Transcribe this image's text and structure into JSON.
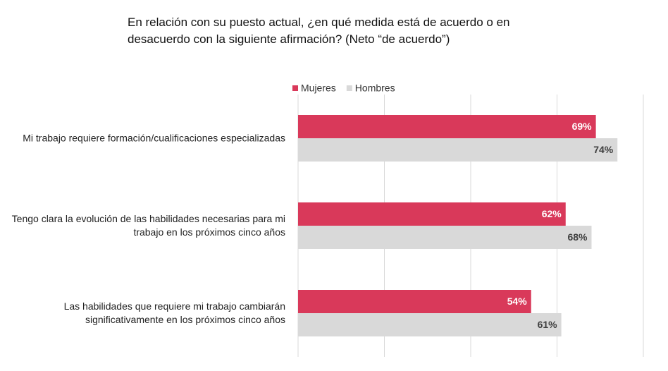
{
  "chart_data": {
    "type": "barh",
    "title": "En relación con su puesto actual, ¿en qué medida está de acuerdo o en desacuerdo con la siguiente afirmación? (Neto “de acuerdo”)",
    "categories": [
      "Mi trabajo requiere formación/cualificaciones especializadas",
      "Tengo clara la evolución de las habilidades necesarias para mi trabajo en los próximos cinco años",
      "Las habilidades que requiere mi trabajo cambiarán significativamente en los próximos cinco años"
    ],
    "series": [
      {
        "name": "Mujeres",
        "color": "#d9395a",
        "label_color": "#ffffff",
        "values": [
          69,
          62,
          54
        ],
        "value_labels": [
          "69%",
          "62%",
          "54%"
        ]
      },
      {
        "name": "Hombres",
        "color": "#d9d9d9",
        "label_color": "#404040",
        "values": [
          74,
          68,
          61
        ],
        "value_labels": [
          "74%",
          "68%",
          "61%"
        ]
      }
    ],
    "xlim": [
      0,
      80
    ],
    "xticks": [
      0,
      20,
      40,
      60,
      80
    ],
    "grid": true,
    "legend": "top"
  }
}
